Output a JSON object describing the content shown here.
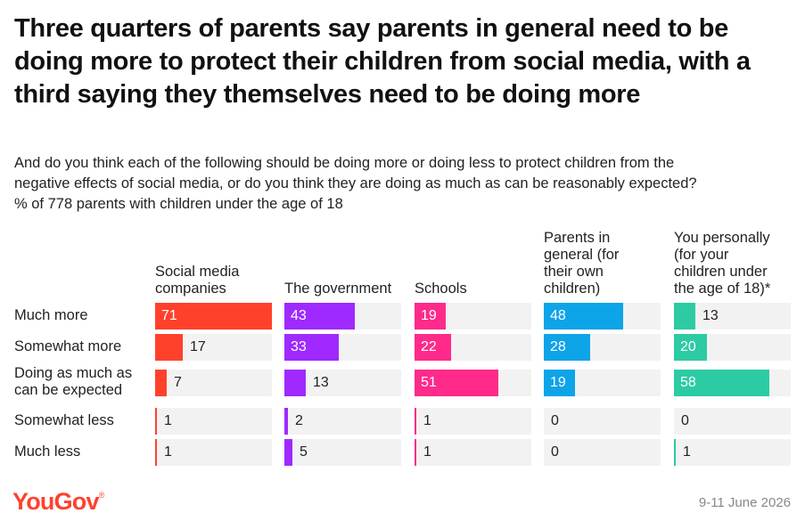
{
  "title": "Three quarters of parents say parents in general need to be doing more to protect their children from social media, with a third saying they themselves need to be doing more",
  "subtitle_lines": [
    "And do you think each of the following should be doing more or doing less to protect children from the",
    "negative effects of social media, or do you think they are doing as much as can be reasonably expected?",
    "% of 778 parents with children under the age of 18"
  ],
  "footer": {
    "brand": "YouGov",
    "date": "9-11 June 2026"
  },
  "chart_data": {
    "type": "table",
    "rows": [
      "Much more",
      "Somewhat more",
      "Doing as much as can be expected",
      "Somewhat less",
      "Much less"
    ],
    "columns": [
      {
        "name": "Social media companies",
        "color": "#ff412c",
        "values": [
          71,
          17,
          7,
          1,
          1
        ]
      },
      {
        "name": "The government",
        "color": "#9f29ff",
        "values": [
          43,
          33,
          13,
          2,
          5
        ]
      },
      {
        "name": "Schools",
        "color": "#ff2a8a",
        "values": [
          19,
          22,
          51,
          1,
          1
        ]
      },
      {
        "name": "Parents in general (for their own children)",
        "color": "#0ea4e8",
        "values": [
          48,
          28,
          19,
          0,
          0
        ]
      },
      {
        "name": "You personally (for your children under the age of 18)*",
        "color": "#2dcba4",
        "values": [
          13,
          20,
          58,
          0,
          1
        ]
      }
    ],
    "value_unit": "%",
    "xlim": [
      0,
      71
    ]
  }
}
